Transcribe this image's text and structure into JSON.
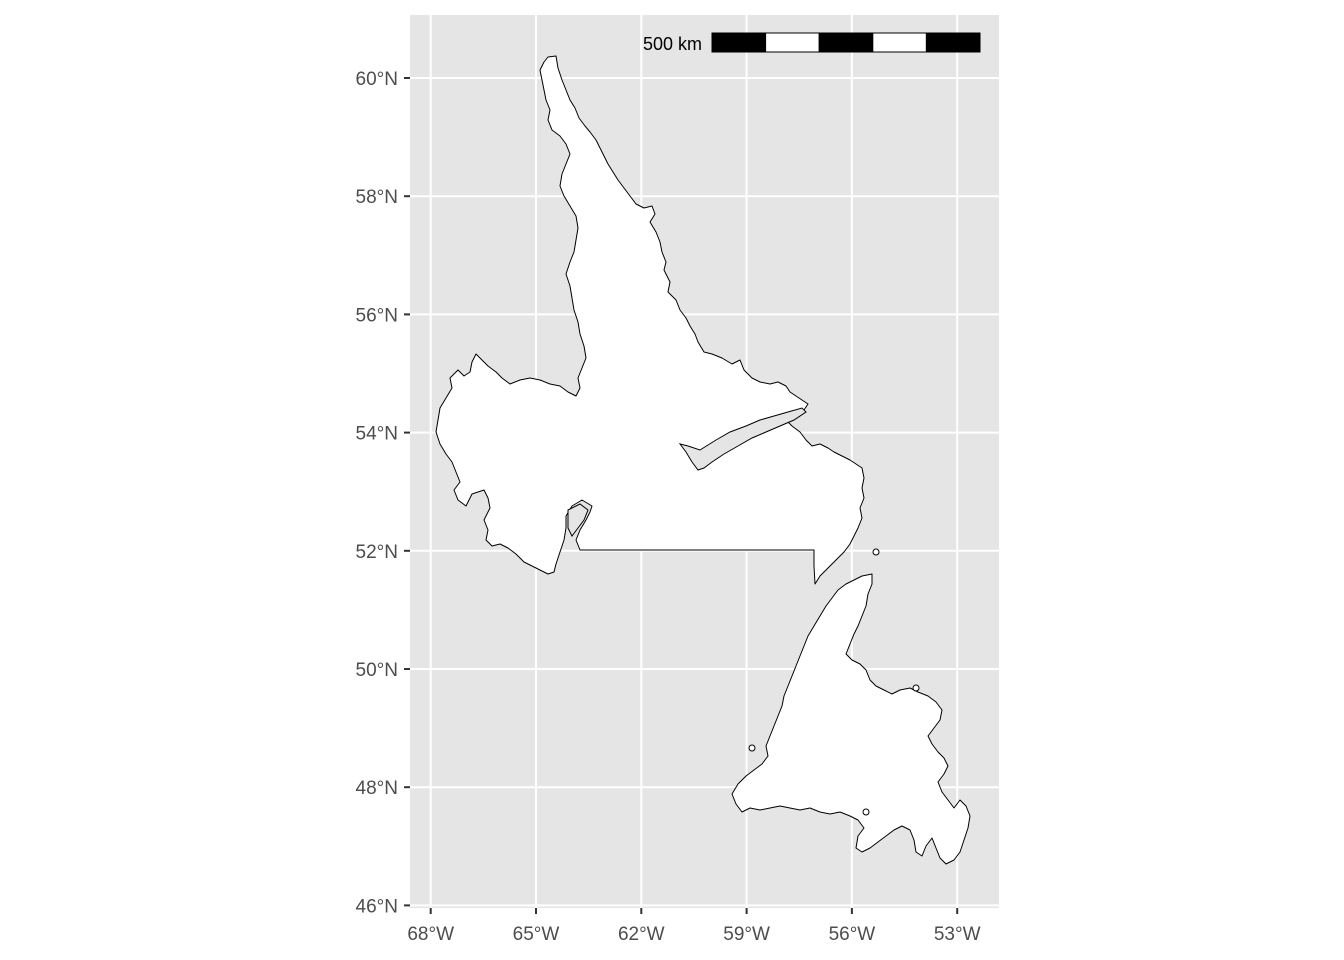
{
  "map": {
    "region": "Newfoundland and Labrador",
    "colors": {
      "panel_background": "#e5e5e5",
      "grid_line": "#ffffff",
      "land_fill": "#ffffff",
      "land_stroke": "#000000",
      "lake_fill": "#e5e5e5",
      "axis_text": "#4d4d4d",
      "tick": "#333333"
    },
    "lat_ticks": [
      {
        "value": 60,
        "label": "60°N"
      },
      {
        "value": 58,
        "label": "58°N"
      },
      {
        "value": 56,
        "label": "56°N"
      },
      {
        "value": 54,
        "label": "54°N"
      },
      {
        "value": 52,
        "label": "52°N"
      },
      {
        "value": 50,
        "label": "50°N"
      },
      {
        "value": 48,
        "label": "48°N"
      },
      {
        "value": 46,
        "label": "46°N"
      }
    ],
    "lon_ticks": [
      {
        "value": -68,
        "label": "68°W"
      },
      {
        "value": -65,
        "label": "65°W"
      },
      {
        "value": -62,
        "label": "62°W"
      },
      {
        "value": -59,
        "label": "59°W"
      },
      {
        "value": -56,
        "label": "56°W"
      },
      {
        "value": -53,
        "label": "53°W"
      }
    ],
    "scale_bar": {
      "label": "500 km",
      "segments": 5,
      "segment_colors": [
        "black",
        "white",
        "black",
        "white",
        "black"
      ]
    }
  }
}
